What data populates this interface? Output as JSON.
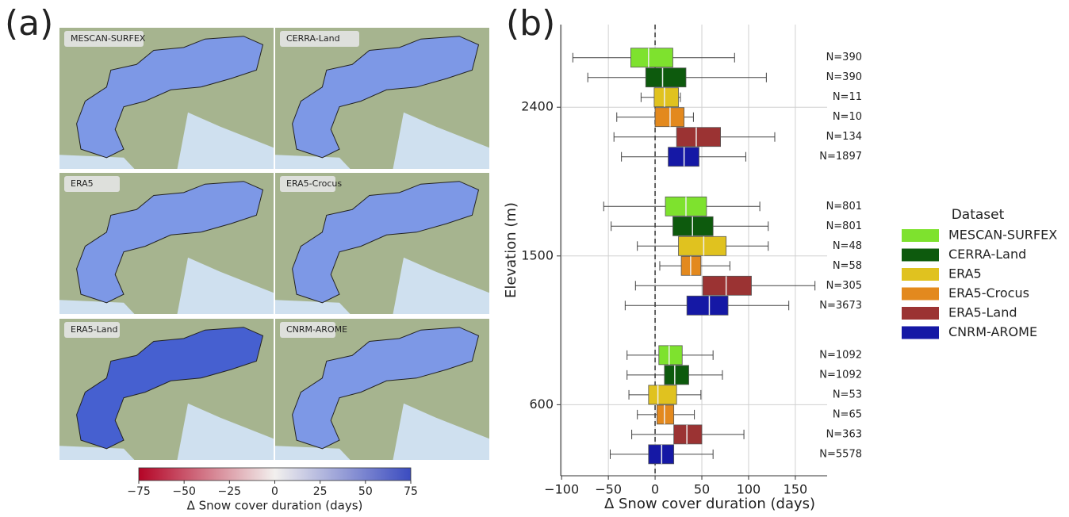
{
  "chart_data": [
    {
      "type": "map",
      "panel_label": "(a)",
      "maps": [
        "MESCAN-SURFEX",
        "CERRA-Land",
        "ERA5",
        "ERA5-Crocus",
        "ERA5-Land",
        "CNRM-AROME"
      ],
      "clim": [
        -75,
        75
      ],
      "cticks": [
        {
          "value": -75,
          "label": "−75"
        },
        {
          "value": -50,
          "label": "−50"
        },
        {
          "value": -25,
          "label": "−25"
        },
        0,
        25,
        50,
        75
      ],
      "clabel": "Δ Snow cover duration (days)",
      "cmap_colors": [
        "#b40426",
        "#f2f0ee",
        "#3b4cc0"
      ]
    },
    {
      "type": "box",
      "panel_label": "(b)",
      "xlabel": "Δ Snow cover duration (days)",
      "ylabel": "Elevation (m)",
      "y": [
        600,
        1500,
        2400
      ],
      "xlim": [
        -101,
        184
      ],
      "xticks": [
        {
          "value": -100,
          "label": "−100"
        },
        {
          "value": -50,
          "label": "−50"
        },
        0,
        50,
        100,
        150
      ],
      "ylim": [
        170,
        2900
      ],
      "yticks": [
        600,
        1500,
        2400
      ],
      "grid": true,
      "reference_line": 0,
      "legend_title": "Dataset",
      "legend_position": "right outside",
      "series": [
        {
          "name": "MESCAN-SURFEX",
          "color": "#7ee22e",
          "whislo": [
            -30,
            -55,
            -88
          ],
          "q1": [
            4,
            11,
            -26
          ],
          "median": [
            15,
            33,
            -7
          ],
          "q3": [
            29,
            55,
            19
          ],
          "whishi": [
            62,
            112,
            85
          ],
          "n_labels": [
            "N=1092",
            "N=801",
            "N=390"
          ]
        },
        {
          "name": "CERRA-Land",
          "color": "#0d5a0d",
          "whislo": [
            -30,
            -47,
            -72
          ],
          "q1": [
            10,
            19,
            -10
          ],
          "median": [
            21,
            40,
            8
          ],
          "q3": [
            36,
            62,
            33
          ],
          "whishi": [
            72,
            121,
            119
          ],
          "n_labels": [
            "N=1092",
            "N=801",
            "N=390"
          ]
        },
        {
          "name": "ERA5",
          "color": "#e0c21f",
          "whislo": [
            -28,
            -19,
            -15
          ],
          "q1": [
            -7,
            25,
            -1
          ],
          "median": [
            3,
            52,
            10
          ],
          "q3": [
            23,
            76,
            25
          ],
          "whishi": [
            49,
            121,
            27
          ],
          "n_labels": [
            "N=53",
            "N=48",
            "N=11"
          ]
        },
        {
          "name": "ERA5-Crocus",
          "color": "#e3891e",
          "whislo": [
            -19,
            5,
            -41
          ],
          "q1": [
            2,
            28,
            0
          ],
          "median": [
            10,
            38,
            16
          ],
          "q3": [
            20,
            49,
            31
          ],
          "whishi": [
            42,
            80,
            41
          ],
          "n_labels": [
            "N=65",
            "N=58",
            "N=10"
          ]
        },
        {
          "name": "ERA5-Land",
          "color": "#9b3333",
          "whislo": [
            -25,
            -21,
            -44
          ],
          "q1": [
            20,
            51,
            23
          ],
          "median": [
            34,
            76,
            44
          ],
          "q3": [
            50,
            103,
            70
          ],
          "whishi": [
            95,
            171,
            128
          ],
          "n_labels": [
            "N=363",
            "N=305",
            "N=134"
          ]
        },
        {
          "name": "CNRM-AROME",
          "color": "#1518a5",
          "whislo": [
            -48,
            -32,
            -36
          ],
          "q1": [
            -7,
            34,
            14
          ],
          "median": [
            7,
            58,
            31
          ],
          "q3": [
            20,
            78,
            47
          ],
          "whishi": [
            62,
            143,
            97
          ],
          "n_labels": [
            "N=5578",
            "N=3673",
            "N=1897"
          ]
        }
      ]
    }
  ]
}
